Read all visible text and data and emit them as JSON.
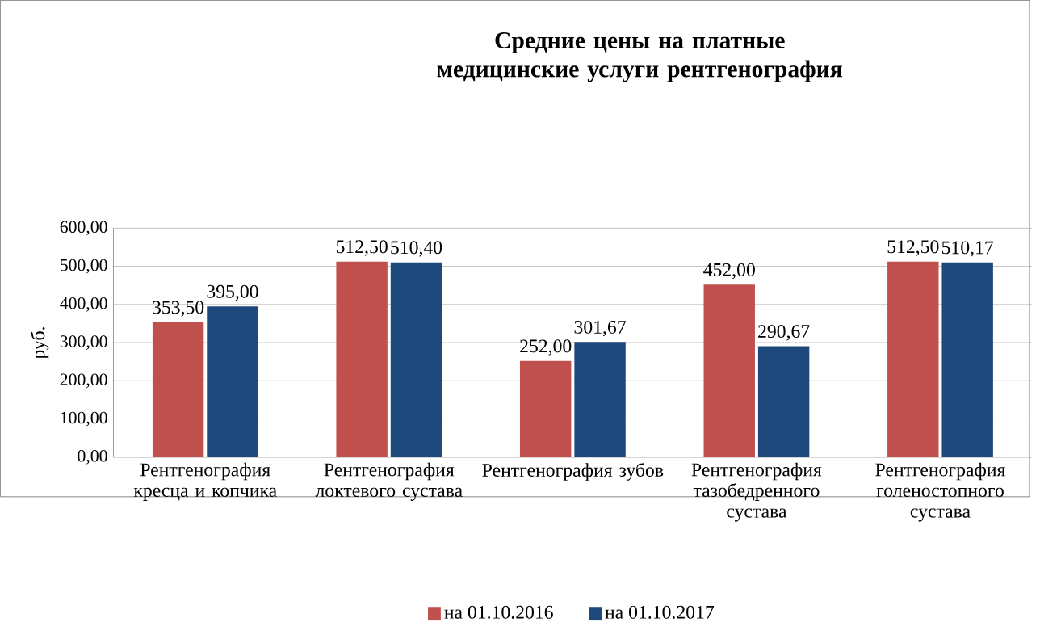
{
  "chart_data": {
    "type": "bar",
    "title": "Средние цены на платные медицинские услуги рентгенография",
    "ylabel": "руб.",
    "categories": [
      "Рентгенография кресца и копчика",
      "Рентгенография локтевого сустава",
      "Рентгенография зубов",
      "Рентгенография тазобедренного сустава",
      "Рентгенография голеностопного сустава"
    ],
    "series": [
      {
        "name": "на 01.10.2016",
        "color": "#c0504d",
        "values": [
          353.5,
          512.5,
          252.0,
          452.0,
          512.5
        ],
        "value_labels": [
          "353,50",
          "512,50",
          "252,00",
          "452,00",
          "512,50"
        ]
      },
      {
        "name": "на 01.10.2017",
        "color": "#1f497d",
        "values": [
          395.0,
          510.4,
          301.67,
          290.67,
          510.17
        ],
        "value_labels": [
          "395,00",
          "510,40",
          "301,67",
          "290,67",
          "510,17"
        ]
      }
    ],
    "ylim": [
      0,
      600
    ],
    "yticks": [
      {
        "value": 0,
        "label": "0,00"
      },
      {
        "value": 100,
        "label": "100,00"
      },
      {
        "value": 200,
        "label": "200,00"
      },
      {
        "value": 300,
        "label": "300,00"
      },
      {
        "value": 400,
        "label": "400,00"
      },
      {
        "value": 500,
        "label": "500,00"
      },
      {
        "value": 600,
        "label": "600,00"
      }
    ],
    "grid": "y",
    "legend": "bottom"
  }
}
